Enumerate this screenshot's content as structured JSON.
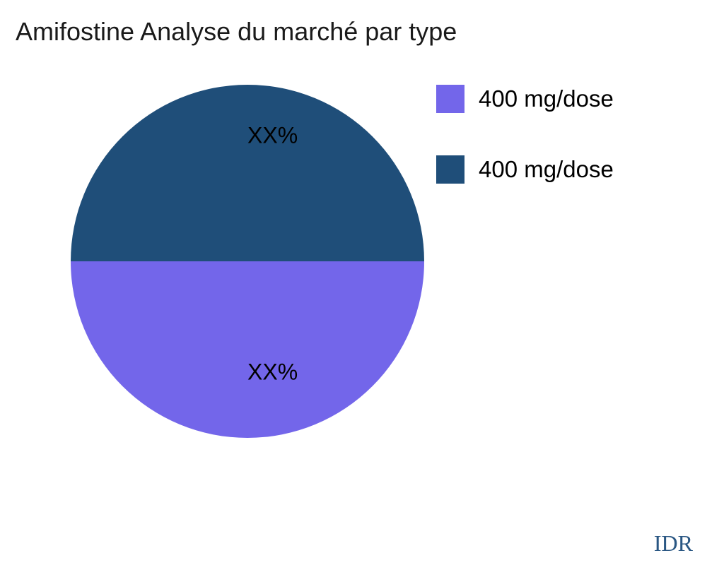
{
  "chart_data": {
    "type": "pie",
    "title": "Amifostine Analyse du marché par type",
    "slices": [
      {
        "label": "400 mg/dose",
        "value": 50,
        "display_pct": "XX%",
        "color": "#7366EA"
      },
      {
        "label": "400 mg/dose",
        "value": 50,
        "display_pct": "XX%",
        "color": "#1F4E79"
      }
    ],
    "start_angle_deg": 0,
    "direction": "clockwise",
    "legend_position": "right",
    "labels_inside": true,
    "watermark": "IDR"
  }
}
